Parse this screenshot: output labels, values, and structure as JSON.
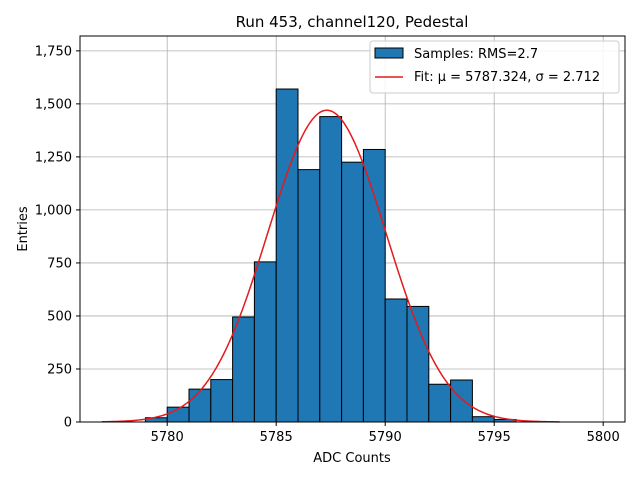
{
  "chart_data": {
    "type": "bar",
    "title": "Run 453, channel120, Pedestal",
    "xlabel": "ADC Counts",
    "ylabel": "Entries",
    "xlim": [
      5776,
      5801
    ],
    "ylim": [
      0,
      1820
    ],
    "xticks": [
      5780,
      5785,
      5790,
      5795,
      5800
    ],
    "yticks": [
      0,
      250,
      500,
      750,
      1000,
      1250,
      1500,
      1750
    ],
    "grid": true,
    "legend_position": "top-right",
    "bin_width": 1,
    "bins": [
      {
        "left": 5779,
        "value": 20
      },
      {
        "left": 5780,
        "value": 70
      },
      {
        "left": 5781,
        "value": 155
      },
      {
        "left": 5782,
        "value": 200
      },
      {
        "left": 5783,
        "value": 495
      },
      {
        "left": 5784,
        "value": 755
      },
      {
        "left": 5785,
        "value": 1570
      },
      {
        "left": 5786,
        "value": 1190
      },
      {
        "left": 5787,
        "value": 1440
      },
      {
        "left": 5788,
        "value": 1225
      },
      {
        "left": 5789,
        "value": 1285
      },
      {
        "left": 5790,
        "value": 580
      },
      {
        "left": 5791,
        "value": 545
      },
      {
        "left": 5792,
        "value": 178
      },
      {
        "left": 5793,
        "value": 198
      },
      {
        "left": 5794,
        "value": 25
      },
      {
        "left": 5795,
        "value": 12
      }
    ],
    "fit": {
      "mu": 5787.324,
      "sigma": 2.712,
      "peak": 1470,
      "x_range": [
        5777,
        5798
      ]
    },
    "series": [
      {
        "name": "Samples: RMS=2.7",
        "type": "histogram",
        "color": "#1f77b4"
      },
      {
        "name": "Fit: μ = 5787.324, σ = 2.712",
        "type": "line",
        "color": "#e41a1c"
      }
    ]
  }
}
